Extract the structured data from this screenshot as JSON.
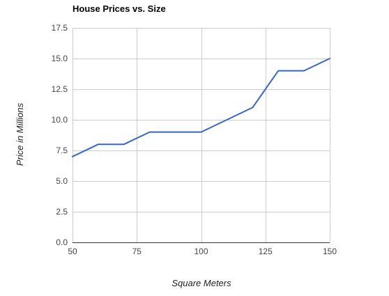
{
  "chart_data": {
    "type": "line",
    "title": "House Prices vs. Size",
    "xlabel": "Square Meters",
    "ylabel": "Price in Millions",
    "x": [
      50,
      60,
      70,
      80,
      90,
      100,
      110,
      120,
      130,
      140,
      150
    ],
    "series": [
      {
        "values": [
          7,
          8,
          8,
          9,
          9,
          9,
          10,
          11,
          14,
          14,
          15
        ],
        "color": "#3366cc"
      }
    ],
    "xlim": [
      50,
      150
    ],
    "ylim": [
      0,
      17.5
    ],
    "xticks": [
      50,
      75,
      100,
      125,
      150
    ],
    "yticks": [
      "0.0",
      "2.5",
      "5.0",
      "7.5",
      "10.0",
      "12.5",
      "15.0",
      "17.5"
    ],
    "xtick_labels": [
      "50",
      "75",
      "100",
      "125",
      "150"
    ],
    "grid": true,
    "legend": "none"
  }
}
